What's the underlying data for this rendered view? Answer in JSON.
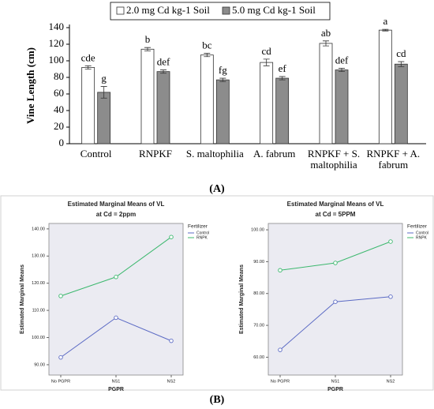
{
  "panel_label_a": "(A)",
  "panel_label_b": "(B)",
  "chart_data": [
    {
      "type": "bar",
      "y_label": "Vine Length (cm)",
      "categories": [
        "Control",
        "RNPKF",
        "S. maltophilia",
        "A. fabrum",
        "RNPKF + S. maltophilia",
        "RNPKF + A. fabrum"
      ],
      "series": [
        {
          "name": "2.0 mg Cd kg-1 Soil",
          "color": "#ffffff",
          "values": [
            92,
            114,
            107,
            98,
            121,
            137
          ],
          "errors": [
            2,
            2,
            2,
            4,
            3,
            1
          ],
          "letters": [
            "cde",
            "b",
            "bc",
            "cd",
            "ab",
            "a"
          ]
        },
        {
          "name": "5.0 mg Cd kg-1 Soil",
          "color": "#8c8c8c",
          "values": [
            62,
            87,
            77,
            79,
            89,
            96
          ],
          "errors": [
            7,
            2,
            2,
            2,
            2,
            3
          ],
          "letters": [
            "g",
            "def",
            "fg",
            "ef",
            "def",
            "cd"
          ]
        }
      ],
      "ylim": [
        0,
        140
      ],
      "yticks": [
        0,
        20,
        40,
        60,
        80,
        100,
        120,
        140
      ],
      "grid": false
    },
    {
      "type": "line",
      "title": "Estimated Marginal Means of VL",
      "subtitle": "at Cd = 2ppm",
      "x_label": "PGPR",
      "y_label": "Estimated Marginal Means",
      "legend_title": "Fertilizer",
      "categories": [
        "No PGPR",
        "NS1",
        "NS2"
      ],
      "series": [
        {
          "name": "Control",
          "color": "#5b6ac4",
          "values": [
            92.7,
            107.3,
            98.8
          ]
        },
        {
          "name": "RNPK",
          "color": "#3cb86e",
          "values": [
            115.3,
            122.3,
            137.0
          ]
        }
      ],
      "ylim": [
        86.2,
        142
      ],
      "yticks": [
        {
          "value": 90,
          "label": "90.00"
        },
        {
          "value": 100,
          "label": "100.00"
        },
        {
          "value": 110,
          "label": "110.00"
        },
        {
          "value": 120,
          "label": "120.00"
        },
        {
          "value": 130,
          "label": "130.00"
        },
        {
          "value": 140,
          "label": "140.00"
        }
      ],
      "grid": false
    },
    {
      "type": "line",
      "title": "Estimated Marginal Means of VL",
      "subtitle": "at Cd = 5PPM",
      "x_label": "PGPR",
      "y_label": "Estimated Marginal Means",
      "legend_title": "Fertilizer",
      "categories": [
        "No PGPR",
        "NS1",
        "NS2"
      ],
      "series": [
        {
          "name": "Control",
          "color": "#5b6ac4",
          "values": [
            62.3,
            77.4,
            79.0
          ]
        },
        {
          "name": "RNPK",
          "color": "#3cb86e",
          "values": [
            87.3,
            89.6,
            96.3
          ]
        }
      ],
      "ylim": [
        54.4,
        102
      ],
      "yticks": [
        {
          "value": 60,
          "label": "60.00"
        },
        {
          "value": 70,
          "label": "70.00"
        },
        {
          "value": 80,
          "label": "80.00"
        },
        {
          "value": 90,
          "label": "90.00"
        },
        {
          "value": 100,
          "label": "100.00"
        }
      ],
      "grid": false
    }
  ]
}
